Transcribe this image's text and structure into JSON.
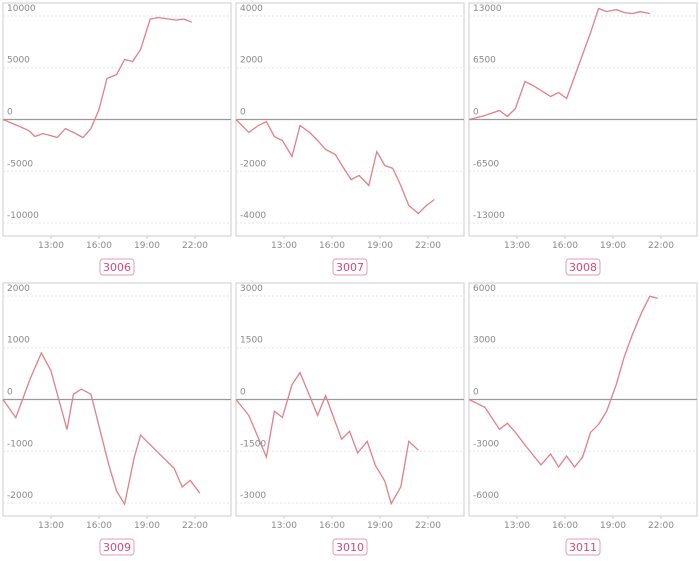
{
  "chart_data": [
    {
      "type": "line",
      "title": "3006",
      "color": "#e08088",
      "grid": true,
      "x": [
        10,
        10.9,
        11.6,
        12,
        12.5,
        13.4,
        13.9,
        14.4,
        15,
        15.5,
        16,
        16.5,
        17.1,
        17.6,
        18.1,
        18.6,
        19.2,
        19.7,
        20.8,
        21.3,
        21.8
      ],
      "values": [
        0,
        -580,
        -1060,
        -1640,
        -1350,
        -1740,
        -870,
        -1250,
        -1740,
        -870,
        965,
        3960,
        4340,
        5790,
        5600,
        6760,
        9700,
        9850,
        9600,
        9700,
        9400
      ],
      "xlim": [
        10,
        24.25
      ],
      "xticks": [
        {
          "value": 13,
          "label": "13:00"
        },
        {
          "value": 16,
          "label": "16:00"
        },
        {
          "value": 19,
          "label": "19:00"
        },
        {
          "value": 22,
          "label": "22:00"
        }
      ],
      "ylim": [
        -11250,
        11250
      ],
      "yticks": [
        10000,
        5000,
        0,
        -5000,
        -10000
      ]
    },
    {
      "type": "line",
      "title": "3007",
      "color": "#e08088",
      "grid": true,
      "x": [
        10,
        10.8,
        11.4,
        11.9,
        12.4,
        12.9,
        13.5,
        14,
        14.6,
        15.1,
        15.6,
        16.2,
        16.7,
        17.2,
        17.7,
        18.3,
        18.8,
        19.3,
        19.8,
        20.3,
        20.8,
        21.4,
        21.9,
        22.4
      ],
      "values": [
        0,
        -500,
        -230,
        -80,
        -660,
        -810,
        -1430,
        -230,
        -500,
        -810,
        -1160,
        -1350,
        -1850,
        -2320,
        -2160,
        -2550,
        -1240,
        -1780,
        -1890,
        -2550,
        -3320,
        -3630,
        -3320,
        -3090
      ],
      "xlim": [
        10,
        24.25
      ],
      "xticks": [
        {
          "value": 13,
          "label": "13:00"
        },
        {
          "value": 16,
          "label": "16:00"
        },
        {
          "value": 19,
          "label": "19:00"
        },
        {
          "value": 22,
          "label": "22:00"
        }
      ],
      "ylim": [
        -4500,
        4500
      ],
      "yticks": [
        4000,
        2000,
        0,
        -2000,
        -4000
      ]
    },
    {
      "type": "line",
      "title": "3008",
      "color": "#e08088",
      "grid": true,
      "x": [
        10,
        11,
        11.9,
        12.4,
        12.9,
        13.5,
        14,
        15.1,
        15.6,
        16.1,
        16.6,
        17.1,
        17.6,
        18.1,
        18.6,
        19.2,
        19.7,
        20.2,
        20.7,
        21.3
      ],
      "values": [
        0,
        500,
        1130,
        380,
        1380,
        4770,
        4270,
        2890,
        3390,
        2630,
        5400,
        8160,
        10920,
        13930,
        13550,
        13800,
        13430,
        13300,
        13550,
        13300
      ],
      "xlim": [
        10,
        24.25
      ],
      "xticks": [
        {
          "value": 13,
          "label": "13:00"
        },
        {
          "value": 16,
          "label": "16:00"
        },
        {
          "value": 19,
          "label": "19:00"
        },
        {
          "value": 22,
          "label": "22:00"
        }
      ],
      "ylim": [
        -14625,
        14625
      ],
      "yticks": [
        13000,
        6500,
        0,
        -6500,
        -13000
      ]
    },
    {
      "type": "line",
      "title": "3009",
      "color": "#e08088",
      "grid": true,
      "x": [
        10,
        10.8,
        11.7,
        12.4,
        13,
        14,
        14.4,
        14.9,
        15.5,
        16.6,
        17.1,
        17.6,
        18.2,
        18.6,
        20.7,
        21.2,
        21.7,
        22.3
      ],
      "values": [
        0,
        -350,
        400,
        900,
        550,
        -580,
        100,
        200,
        100,
        -1250,
        -1770,
        -2020,
        -1120,
        -690,
        -1330,
        -1690,
        -1560,
        -1810
      ],
      "xlim": [
        10,
        24.25
      ],
      "xticks": [
        {
          "value": 13,
          "label": "13:00"
        },
        {
          "value": 16,
          "label": "16:00"
        },
        {
          "value": 19,
          "label": "19:00"
        },
        {
          "value": 22,
          "label": "22:00"
        }
      ],
      "ylim": [
        -2250,
        2250
      ],
      "yticks": [
        2000,
        1000,
        0,
        -1000,
        -2000
      ]
    },
    {
      "type": "line",
      "title": "3010",
      "color": "#e08088",
      "grid": true,
      "x": [
        10,
        10.8,
        11.9,
        12.4,
        12.9,
        13.5,
        14,
        14.6,
        15.1,
        15.6,
        16.6,
        17.1,
        17.6,
        18.2,
        18.7,
        19.3,
        19.7,
        20.3,
        20.8,
        21.4
      ],
      "values": [
        0,
        -460,
        -1670,
        -340,
        -520,
        430,
        780,
        110,
        -460,
        110,
        -1150,
        -920,
        -1550,
        -1210,
        -1900,
        -2360,
        -3020,
        -2530,
        -1210,
        -1470
      ],
      "xlim": [
        10,
        24.25
      ],
      "xticks": [
        {
          "value": 13,
          "label": "13:00"
        },
        {
          "value": 16,
          "label": "16:00"
        },
        {
          "value": 19,
          "label": "19:00"
        },
        {
          "value": 22,
          "label": "22:00"
        }
      ],
      "ylim": [
        -3375,
        3375
      ],
      "yticks": [
        3000,
        1500,
        0,
        -1500,
        -3000
      ]
    },
    {
      "type": "line",
      "title": "3011",
      "color": "#e08088",
      "grid": true,
      "x": [
        10,
        11,
        11.9,
        12.4,
        12.9,
        13.5,
        14.5,
        15.1,
        15.6,
        16.1,
        16.6,
        17.1,
        17.6,
        18.1,
        18.6,
        19.2,
        19.7,
        20.2,
        20.8,
        21.3,
        21.8
      ],
      "values": [
        0,
        -460,
        -1720,
        -1380,
        -1900,
        -2640,
        -3790,
        -3160,
        -3910,
        -3280,
        -3910,
        -3330,
        -1900,
        -1440,
        -690,
        860,
        2470,
        3740,
        5060,
        5980,
        5860
      ],
      "xlim": [
        10,
        24.25
      ],
      "xticks": [
        {
          "value": 13,
          "label": "13:00"
        },
        {
          "value": 16,
          "label": "16:00"
        },
        {
          "value": 19,
          "label": "19:00"
        },
        {
          "value": 22,
          "label": "22:00"
        }
      ],
      "ylim": [
        -6750,
        6750
      ],
      "yticks": [
        6000,
        3000,
        0,
        -3000,
        -6000
      ]
    }
  ]
}
